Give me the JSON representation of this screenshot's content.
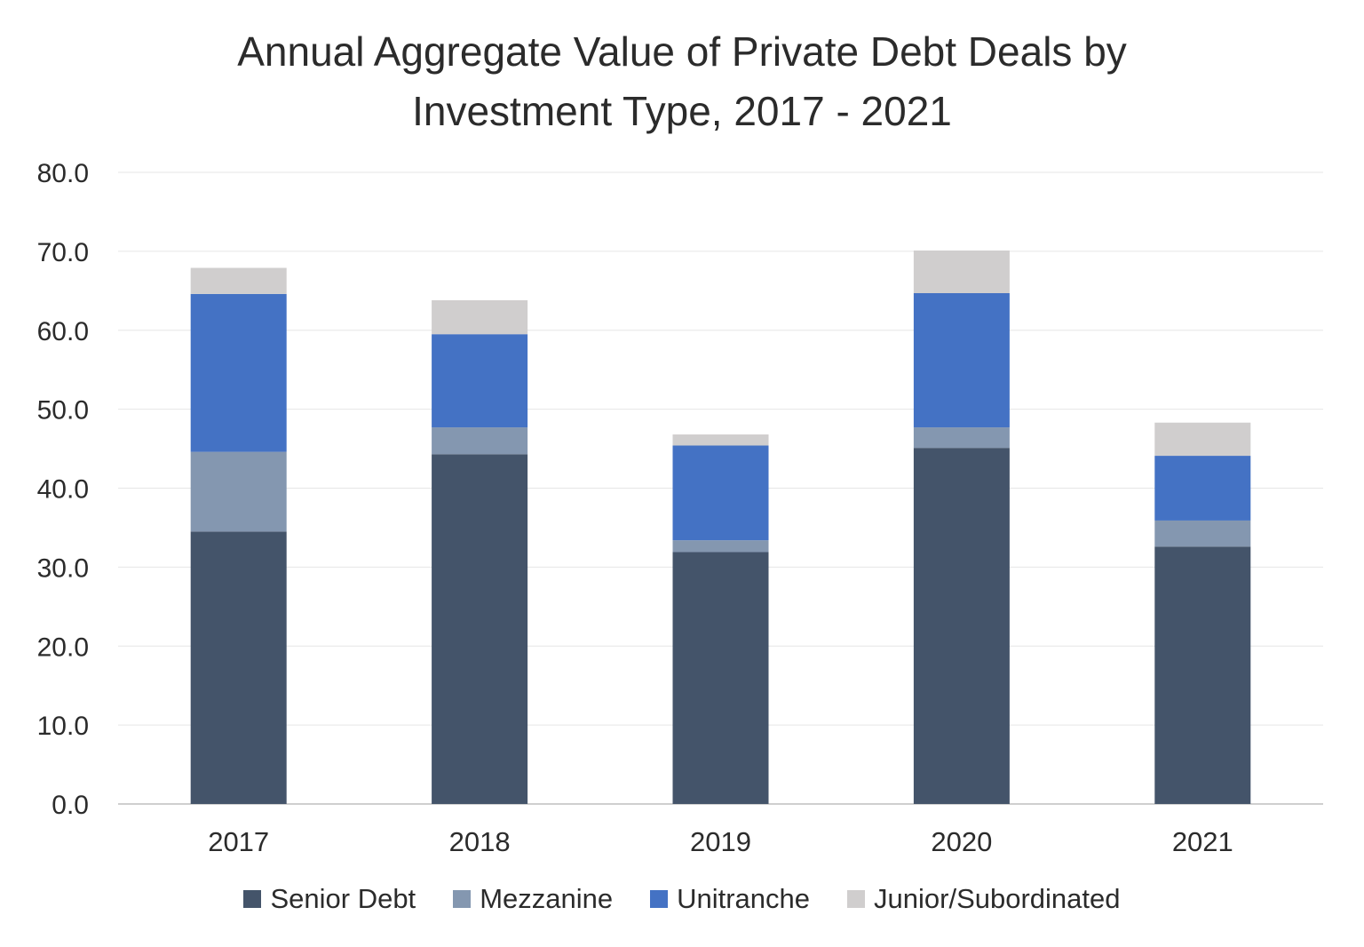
{
  "chart_data": {
    "type": "bar",
    "stacked": true,
    "title_line1": "Annual Aggregate Value of Private Debt Deals by",
    "title_line2": "Investment Type, 2017 - 2021",
    "categories": [
      "2017",
      "2018",
      "2019",
      "2020",
      "2021"
    ],
    "yticks": [
      "0.0",
      "10.0",
      "20.0",
      "30.0",
      "40.0",
      "50.0",
      "60.0",
      "70.0",
      "80.0"
    ],
    "ylim": [
      0,
      80
    ],
    "grid": true,
    "legend_position": "bottom",
    "series": [
      {
        "name": "Senior Debt",
        "color": "#44546A",
        "values": [
          34.5,
          44.3,
          31.9,
          45.1,
          32.6
        ]
      },
      {
        "name": "Mezzanine",
        "color": "#8497B0",
        "values": [
          10.1,
          3.4,
          1.5,
          2.6,
          3.3
        ]
      },
      {
        "name": "Unitranche",
        "color": "#4472C4",
        "values": [
          20.0,
          11.8,
          12.0,
          17.0,
          8.2
        ]
      },
      {
        "name": "Junior/Subordinated",
        "color": "#D0CECE",
        "values": [
          3.3,
          4.3,
          1.4,
          5.4,
          4.2
        ]
      }
    ]
  }
}
